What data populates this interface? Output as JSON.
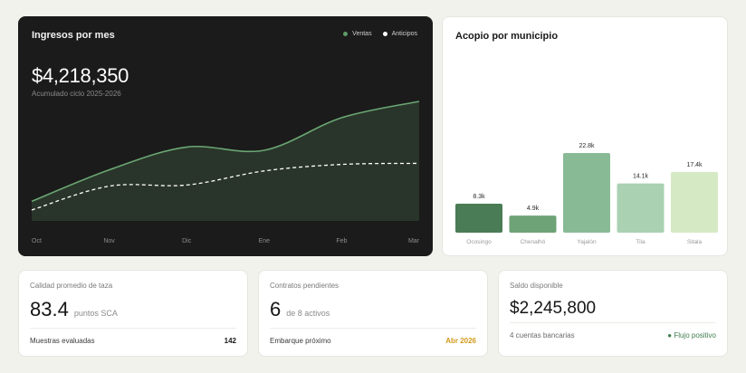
{
  "revenue": {
    "title": "Ingresos por mes",
    "total": "$4,218,350",
    "subtitle": "Acumulado ciclo 2025-2026",
    "legend": [
      {
        "label": "Ventas",
        "color": "#5e9a68"
      },
      {
        "label": "Anticipos",
        "color": "#ffffff"
      }
    ]
  },
  "municipio": {
    "title": "Acopio por municipio"
  },
  "chart_data": [
    {
      "type": "area",
      "title": "Ingresos por mes",
      "categories": [
        "Oct",
        "Nov",
        "Dic",
        "Ene",
        "Feb",
        "Mar"
      ],
      "series": [
        {
          "name": "Ventas",
          "values": [
            0.18,
            0.47,
            0.68,
            0.65,
            0.95,
            1.1
          ],
          "color": "#6ba774"
        },
        {
          "name": "Anticipos",
          "values": [
            0.1,
            0.32,
            0.33,
            0.46,
            0.52,
            0.53
          ],
          "color": "#ffffff"
        }
      ],
      "ylim": [
        0,
        2
      ]
    },
    {
      "type": "bar",
      "title": "Acopio por municipio",
      "categories": [
        "Ocosingo",
        "Chenalhó",
        "Yajalón",
        "Tila",
        "Sitala"
      ],
      "values": [
        8.3,
        4.9,
        22.8,
        14.1,
        17.4
      ],
      "labels": [
        "8.3k",
        "4.9k",
        "22.8k",
        "14.1k",
        "17.4k"
      ],
      "colors": [
        "#4a7c55",
        "#6ea377",
        "#88bb95",
        "#a9d1b2",
        "#d6e9c5"
      ]
    }
  ],
  "kpis": [
    {
      "title": "Calidad promedio de taza",
      "value": "83.4",
      "unit": "puntos SCA",
      "foot_label": "Muestras evaluadas",
      "foot_value": "142"
    },
    {
      "title": "Contratos pendientes",
      "value": "6",
      "unit": "de 8 activos",
      "foot_label": "Embarque próximo",
      "foot_value": "Abr 2026"
    },
    {
      "title": "Saldo disponible",
      "value": "$2,245,800",
      "unit": "",
      "foot_label": "4 cuentas bancarias",
      "foot_value": "Flujo positivo"
    }
  ]
}
